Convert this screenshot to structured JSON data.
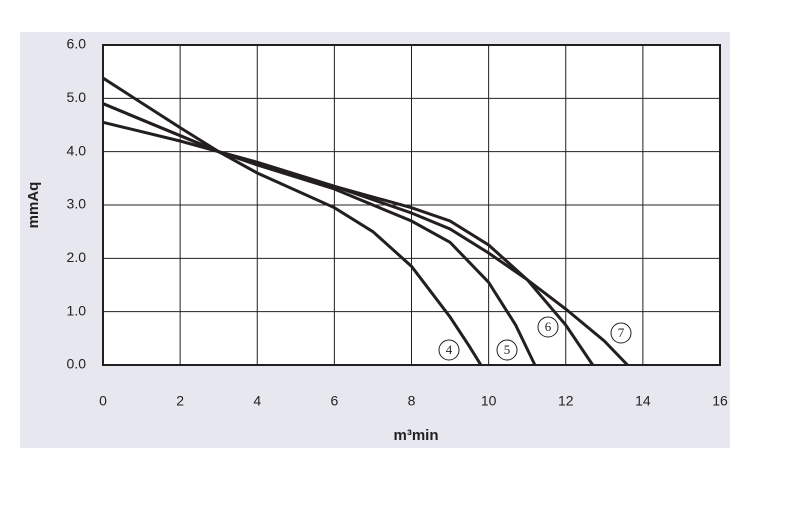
{
  "chart_data": {
    "type": "line",
    "xlabel": "m³min",
    "ylabel": "mmAq",
    "xlim": [
      0,
      16
    ],
    "xticks": [
      0,
      2,
      4,
      6,
      8,
      10,
      12,
      14,
      16
    ],
    "ylim": [
      0,
      6
    ],
    "yticks": [
      {
        "value": 0,
        "label": "0.0"
      },
      {
        "value": 1,
        "label": "1.0"
      },
      {
        "value": 2,
        "label": "2.0"
      },
      {
        "value": 3,
        "label": "3.0"
      },
      {
        "value": 4,
        "label": "4.0"
      },
      {
        "value": 5,
        "label": "5.0"
      },
      {
        "value": 6,
        "label": "6.0"
      }
    ],
    "grid": true,
    "series": [
      {
        "name": "4",
        "color": "#231f20",
        "x": [
          0,
          2,
          3,
          4,
          6,
          7,
          8,
          9,
          9.5,
          9.8
        ],
        "values": [
          5.38,
          4.45,
          4.0,
          3.6,
          2.95,
          2.5,
          1.85,
          0.9,
          0.35,
          0
        ]
      },
      {
        "name": "5",
        "color": "#231f20",
        "x": [
          0,
          2,
          3,
          4,
          6,
          8,
          9,
          10,
          10.7,
          11.2
        ],
        "values": [
          4.9,
          4.3,
          4.0,
          3.75,
          3.3,
          2.7,
          2.3,
          1.55,
          0.75,
          0
        ]
      },
      {
        "name": "6",
        "color": "#231f20",
        "x": [
          0,
          2,
          3,
          4,
          6,
          8,
          9,
          10,
          11,
          12,
          12.7
        ],
        "values": [
          4.55,
          4.2,
          4.0,
          3.8,
          3.35,
          2.95,
          2.7,
          2.25,
          1.6,
          0.75,
          0
        ]
      },
      {
        "name": "7",
        "color": "#231f20",
        "x": [
          0,
          2,
          3,
          4,
          6,
          8,
          9,
          10,
          11,
          12,
          13,
          13.6
        ],
        "values": [
          4.9,
          4.3,
          4.0,
          3.8,
          3.35,
          2.85,
          2.55,
          2.1,
          1.6,
          1.05,
          0.45,
          0
        ]
      }
    ]
  }
}
